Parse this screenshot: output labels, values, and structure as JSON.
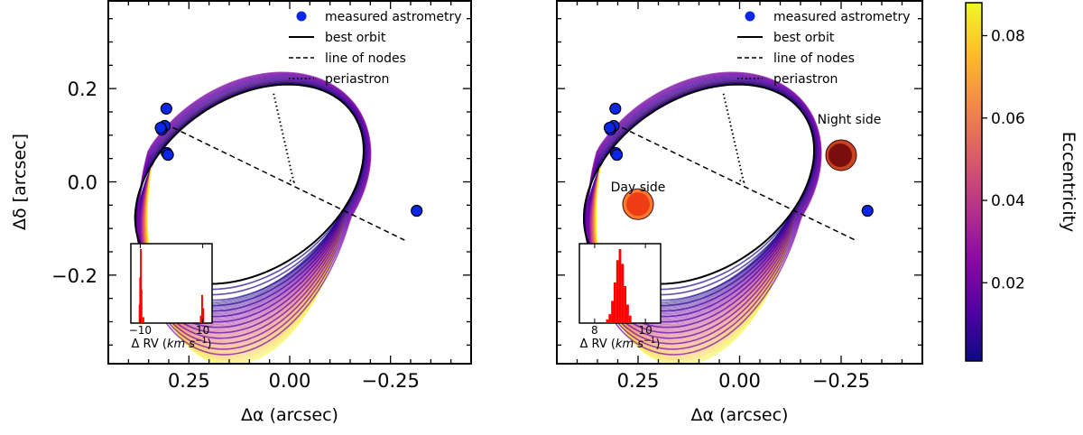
{
  "chart_data": [
    {
      "type": "scatter",
      "panel": "left",
      "xlabel": "Δα (arcsec)",
      "ylabel": "Δδ [arcsec]",
      "xlim": [
        0.45,
        -0.45
      ],
      "ylim": [
        -0.39,
        0.39
      ],
      "xticks": [
        0.25,
        0.0,
        -0.25
      ],
      "xtick_labels": [
        "0.25",
        "0.00",
        "−0.25"
      ],
      "yticks": [
        0.2,
        0.0,
        -0.2
      ],
      "ytick_labels": [
        "0.2",
        "0.0",
        "−0.2"
      ],
      "legend": {
        "placement": "top-right",
        "entries": [
          "measured astrometry",
          "best orbit",
          "line of nodes",
          "periastron"
        ]
      },
      "best_orbit": {
        "center": [
          0.1,
          -0.005
        ],
        "a": 0.3,
        "b": 0.19,
        "tilt_deg": -25
      },
      "orbit_samples": {
        "count": 60,
        "eccentricity_range": [
          0.0,
          0.088
        ]
      },
      "astrometry": [
        {
          "x": 0.306,
          "y": 0.157
        },
        {
          "x": 0.31,
          "y": 0.12
        },
        {
          "x": 0.318,
          "y": 0.112
        },
        {
          "x": 0.32,
          "y": 0.116
        },
        {
          "x": 0.305,
          "y": 0.062
        },
        {
          "x": 0.302,
          "y": 0.058
        },
        {
          "x": -0.315,
          "y": -0.062
        }
      ],
      "line_of_nodes": [
        [
          0.31,
          0.125
        ],
        [
          -0.285,
          -0.125
        ]
      ],
      "periastron": [
        [
          0.0,
          0.003
        ],
        [
          -0.01,
          0.0
        ],
        [
          0.04,
          0.19
        ]
      ],
      "inset": {
        "type": "bar",
        "xlabel": "Δ RV (km s⁻¹)",
        "xlabel_prefix": "Δ RV (",
        "xlabel_units": "km s",
        "xlabel_exp": "−1",
        "xlabel_suffix": ")",
        "xticks": [
          -10,
          10
        ],
        "xtick_labels": [
          "−10",
          "10"
        ],
        "xlim": [
          -13,
          13
        ],
        "color": "#ff0000",
        "bins": [
          {
            "x": -10.2,
            "h": 0.25
          },
          {
            "x": -10.0,
            "h": 0.62
          },
          {
            "x": -9.8,
            "h": 1.0
          },
          {
            "x": -9.6,
            "h": 0.45
          },
          {
            "x": -9.0,
            "h": 0.08
          },
          {
            "x": 9.4,
            "h": 0.1
          },
          {
            "x": 9.8,
            "h": 0.38
          },
          {
            "x": 10.2,
            "h": 0.2
          }
        ]
      }
    },
    {
      "type": "scatter",
      "panel": "right",
      "xlabel": "Δα (arcsec)",
      "ylabel": "",
      "xlim": [
        0.45,
        -0.45
      ],
      "ylim": [
        -0.39,
        0.39
      ],
      "xticks": [
        0.25,
        0.0,
        -0.25
      ],
      "xtick_labels": [
        "0.25",
        "0.00",
        "−0.25"
      ],
      "legend": {
        "placement": "top-right",
        "entries": [
          "measured astrometry",
          "best orbit",
          "line of nodes",
          "periastron"
        ]
      },
      "best_orbit": {
        "center": [
          0.1,
          -0.005
        ],
        "a": 0.3,
        "b": 0.19,
        "tilt_deg": -25
      },
      "orbit_samples": {
        "count": 60,
        "eccentricity_range": [
          0.0,
          0.088
        ]
      },
      "astrometry": [
        {
          "x": 0.306,
          "y": 0.157
        },
        {
          "x": 0.31,
          "y": 0.12
        },
        {
          "x": 0.318,
          "y": 0.112
        },
        {
          "x": 0.32,
          "y": 0.116
        },
        {
          "x": 0.305,
          "y": 0.062
        },
        {
          "x": 0.302,
          "y": 0.058
        },
        {
          "x": -0.315,
          "y": -0.062
        }
      ],
      "line_of_nodes": [
        [
          0.31,
          0.125
        ],
        [
          -0.285,
          -0.125
        ]
      ],
      "periastron": [
        [
          0.0,
          0.003
        ],
        [
          -0.01,
          0.0
        ],
        [
          0.04,
          0.19
        ]
      ],
      "annotations": [
        {
          "text": "Night side",
          "x": -0.27,
          "y": 0.125
        },
        {
          "text": "Day side",
          "x": 0.25,
          "y": -0.02
        }
      ],
      "planets": [
        {
          "label": "Night side",
          "x": -0.25,
          "y": 0.057,
          "fill": "#7a0d0d",
          "rim": "#c8431f"
        },
        {
          "label": "Day side",
          "x": 0.25,
          "y": -0.048,
          "fill": "#ee3d14",
          "rim": "#ff7a2e"
        }
      ],
      "inset": {
        "type": "bar",
        "xlabel": "Δ RV (km s⁻¹)",
        "xlabel_prefix": "Δ RV (",
        "xlabel_units": "km s",
        "xlabel_exp": "−1",
        "xlabel_suffix": ")",
        "xticks": [
          8,
          10
        ],
        "xtick_labels": [
          "8",
          "10"
        ],
        "xlim": [
          7.4,
          10.6
        ],
        "color": "#ff0000",
        "bins": [
          {
            "x": 8.5,
            "h": 0.05
          },
          {
            "x": 8.6,
            "h": 0.12
          },
          {
            "x": 8.7,
            "h": 0.3
          },
          {
            "x": 8.8,
            "h": 0.55
          },
          {
            "x": 8.9,
            "h": 0.85
          },
          {
            "x": 9.0,
            "h": 1.0
          },
          {
            "x": 9.1,
            "h": 0.8
          },
          {
            "x": 9.2,
            "h": 0.5
          },
          {
            "x": 9.3,
            "h": 0.25
          },
          {
            "x": 9.4,
            "h": 0.1
          }
        ]
      }
    },
    {
      "type": "colorbar",
      "label": "Eccentricity",
      "range": [
        0.001,
        0.088
      ],
      "ticks": [
        0.02,
        0.04,
        0.06,
        0.08
      ],
      "tick_labels": [
        "0.02",
        "0.04",
        "0.06",
        "0.08"
      ],
      "colormap": [
        "#0d0887",
        "#5302a3",
        "#8b0aa5",
        "#b83289",
        "#db5c68",
        "#f48849",
        "#febc2a",
        "#f0f921"
      ]
    }
  ]
}
